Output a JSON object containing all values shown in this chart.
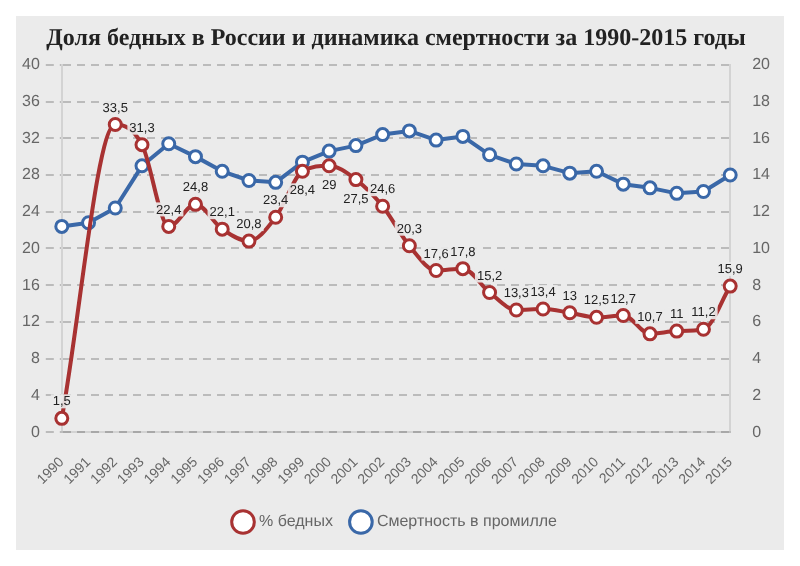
{
  "chart_data": {
    "type": "line",
    "title": "Доля бедных в России и динамика смертности за 1990-2015 годы",
    "categories": [
      "1990",
      "1991",
      "1992",
      "1993",
      "1994",
      "1995",
      "1996",
      "1997",
      "1998",
      "1999",
      "2000",
      "2001",
      "2002",
      "2003",
      "2004",
      "2005",
      "2006",
      "2007",
      "2008",
      "2009",
      "2010",
      "2011",
      "2012",
      "2013",
      "2014",
      "2015"
    ],
    "series": [
      {
        "name": "% бедных",
        "color": "#a83232",
        "values": [
          1.5,
          null,
          33.5,
          31.3,
          22.4,
          24.8,
          22.1,
          20.8,
          23.4,
          28.4,
          29,
          27.5,
          24.6,
          20.3,
          17.6,
          17.8,
          15.2,
          13.3,
          13.4,
          13,
          12.5,
          12.7,
          10.7,
          11,
          11.2,
          15.9
        ],
        "value_labels": [
          "1,5",
          null,
          "33,5",
          "31,3",
          "22,4",
          "24,8",
          "22,1",
          "20,8",
          "23,4",
          "28,4",
          "29",
          "27,5",
          "24,6",
          "20,3",
          "17,6",
          "17,8",
          "15,2",
          "13,3",
          "13,4",
          "13",
          "12,5",
          "12,7",
          "10,7",
          "11",
          "11,2",
          "15,9"
        ]
      },
      {
        "name": "Смертность в промилле",
        "color": "#3a68a8",
        "axis": "y2",
        "values": [
          11.2,
          11.4,
          12.2,
          14.5,
          15.7,
          15,
          14.2,
          13.7,
          13.6,
          14.7,
          15.3,
          15.6,
          16.2,
          16.4,
          15.9,
          16.1,
          15.1,
          14.6,
          14.5,
          14.1,
          14.2,
          13.5,
          13.3,
          13,
          13.1,
          14
        ]
      }
    ],
    "ylim": [
      0,
      40
    ],
    "yticks": [
      0,
      4,
      8,
      12,
      16,
      20,
      24,
      28,
      32,
      36,
      40
    ],
    "y2lim": [
      0,
      20
    ],
    "y2ticks": [
      0,
      2,
      4,
      6,
      8,
      10,
      12,
      14,
      16,
      18,
      20
    ],
    "grid": "y",
    "legend": "bottom",
    "marker": "circle",
    "line_style": "solid"
  }
}
